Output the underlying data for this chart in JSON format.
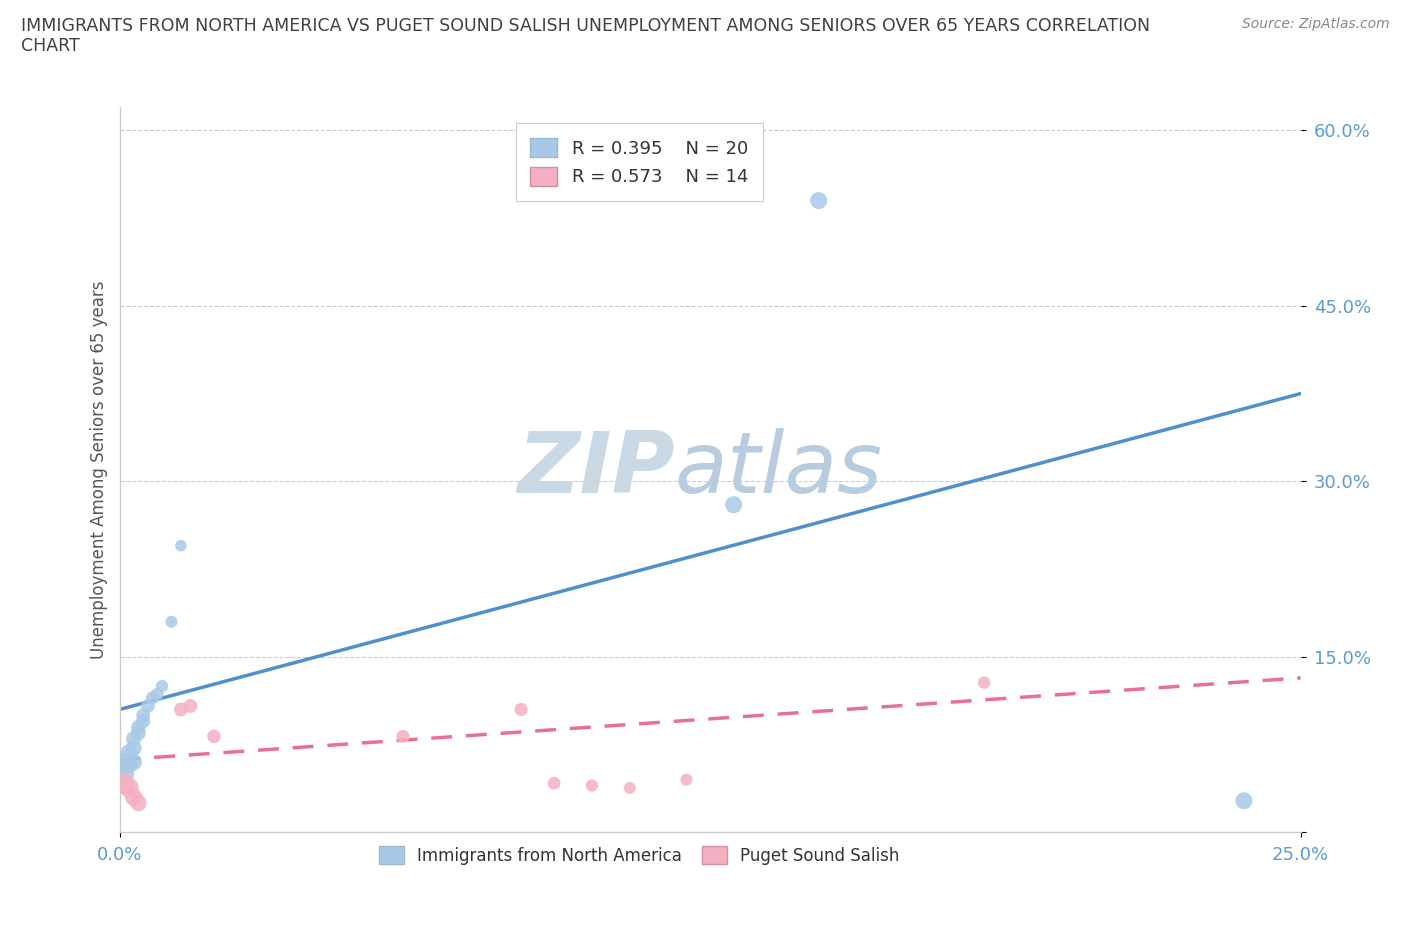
{
  "title_line1": "IMMIGRANTS FROM NORTH AMERICA VS PUGET SOUND SALISH UNEMPLOYMENT AMONG SENIORS OVER 65 YEARS CORRELATION",
  "title_line2": "CHART",
  "source": "Source: ZipAtlas.com",
  "ylabel": "Unemployment Among Seniors over 65 years",
  "xlim": [
    0.0,
    0.25
  ],
  "ylim": [
    0.0,
    0.62
  ],
  "x_ticks": [
    0.0,
    0.25
  ],
  "x_tick_labels": [
    "0.0%",
    "25.0%"
  ],
  "y_ticks": [
    0.0,
    0.15,
    0.3,
    0.45,
    0.6
  ],
  "y_tick_labels": [
    "",
    "15.0%",
    "30.0%",
    "45.0%",
    "60.0%"
  ],
  "blue_color": "#a8c8e8",
  "pink_color": "#f4b0c0",
  "blue_line_color": "#4f8fcc",
  "pink_line_color": "#e87090",
  "watermark_text": "ZIPatlas",
  "watermark_color": "#d8e8f0",
  "legend_R1": "R = 0.395",
  "legend_N1": "N = 20",
  "legend_R2": "R = 0.573",
  "legend_N2": "N = 14",
  "blue_scatter_x": [
    0.001,
    0.001,
    0.002,
    0.002,
    0.003,
    0.003,
    0.003,
    0.004,
    0.004,
    0.005,
    0.005,
    0.006,
    0.007,
    0.008,
    0.009,
    0.011,
    0.013,
    0.13,
    0.148,
    0.238
  ],
  "blue_scatter_y": [
    0.05,
    0.06,
    0.058,
    0.068,
    0.06,
    0.072,
    0.08,
    0.085,
    0.09,
    0.095,
    0.1,
    0.108,
    0.115,
    0.118,
    0.125,
    0.18,
    0.245,
    0.28,
    0.54,
    0.027
  ],
  "blue_scatter_sizes": [
    200,
    180,
    160,
    150,
    140,
    130,
    120,
    115,
    110,
    105,
    100,
    95,
    90,
    85,
    80,
    75,
    70,
    150,
    150,
    150
  ],
  "pink_scatter_x": [
    0.001,
    0.002,
    0.003,
    0.004,
    0.013,
    0.015,
    0.02,
    0.06,
    0.085,
    0.092,
    0.1,
    0.108,
    0.12,
    0.183
  ],
  "pink_scatter_y": [
    0.042,
    0.038,
    0.03,
    0.025,
    0.105,
    0.108,
    0.082,
    0.082,
    0.105,
    0.042,
    0.04,
    0.038,
    0.045,
    0.128
  ],
  "pink_scatter_sizes": [
    220,
    200,
    160,
    140,
    100,
    100,
    95,
    90,
    90,
    85,
    80,
    75,
    75,
    80
  ],
  "blue_trend_x": [
    0.0,
    0.25
  ],
  "blue_trend_y": [
    0.105,
    0.375
  ],
  "pink_trend_x": [
    0.0,
    0.25
  ],
  "pink_trend_y": [
    0.062,
    0.132
  ],
  "grid_color": "#cccccc",
  "bg_color": "#ffffff",
  "title_color": "#404040",
  "tick_color": "#5b9bd5"
}
